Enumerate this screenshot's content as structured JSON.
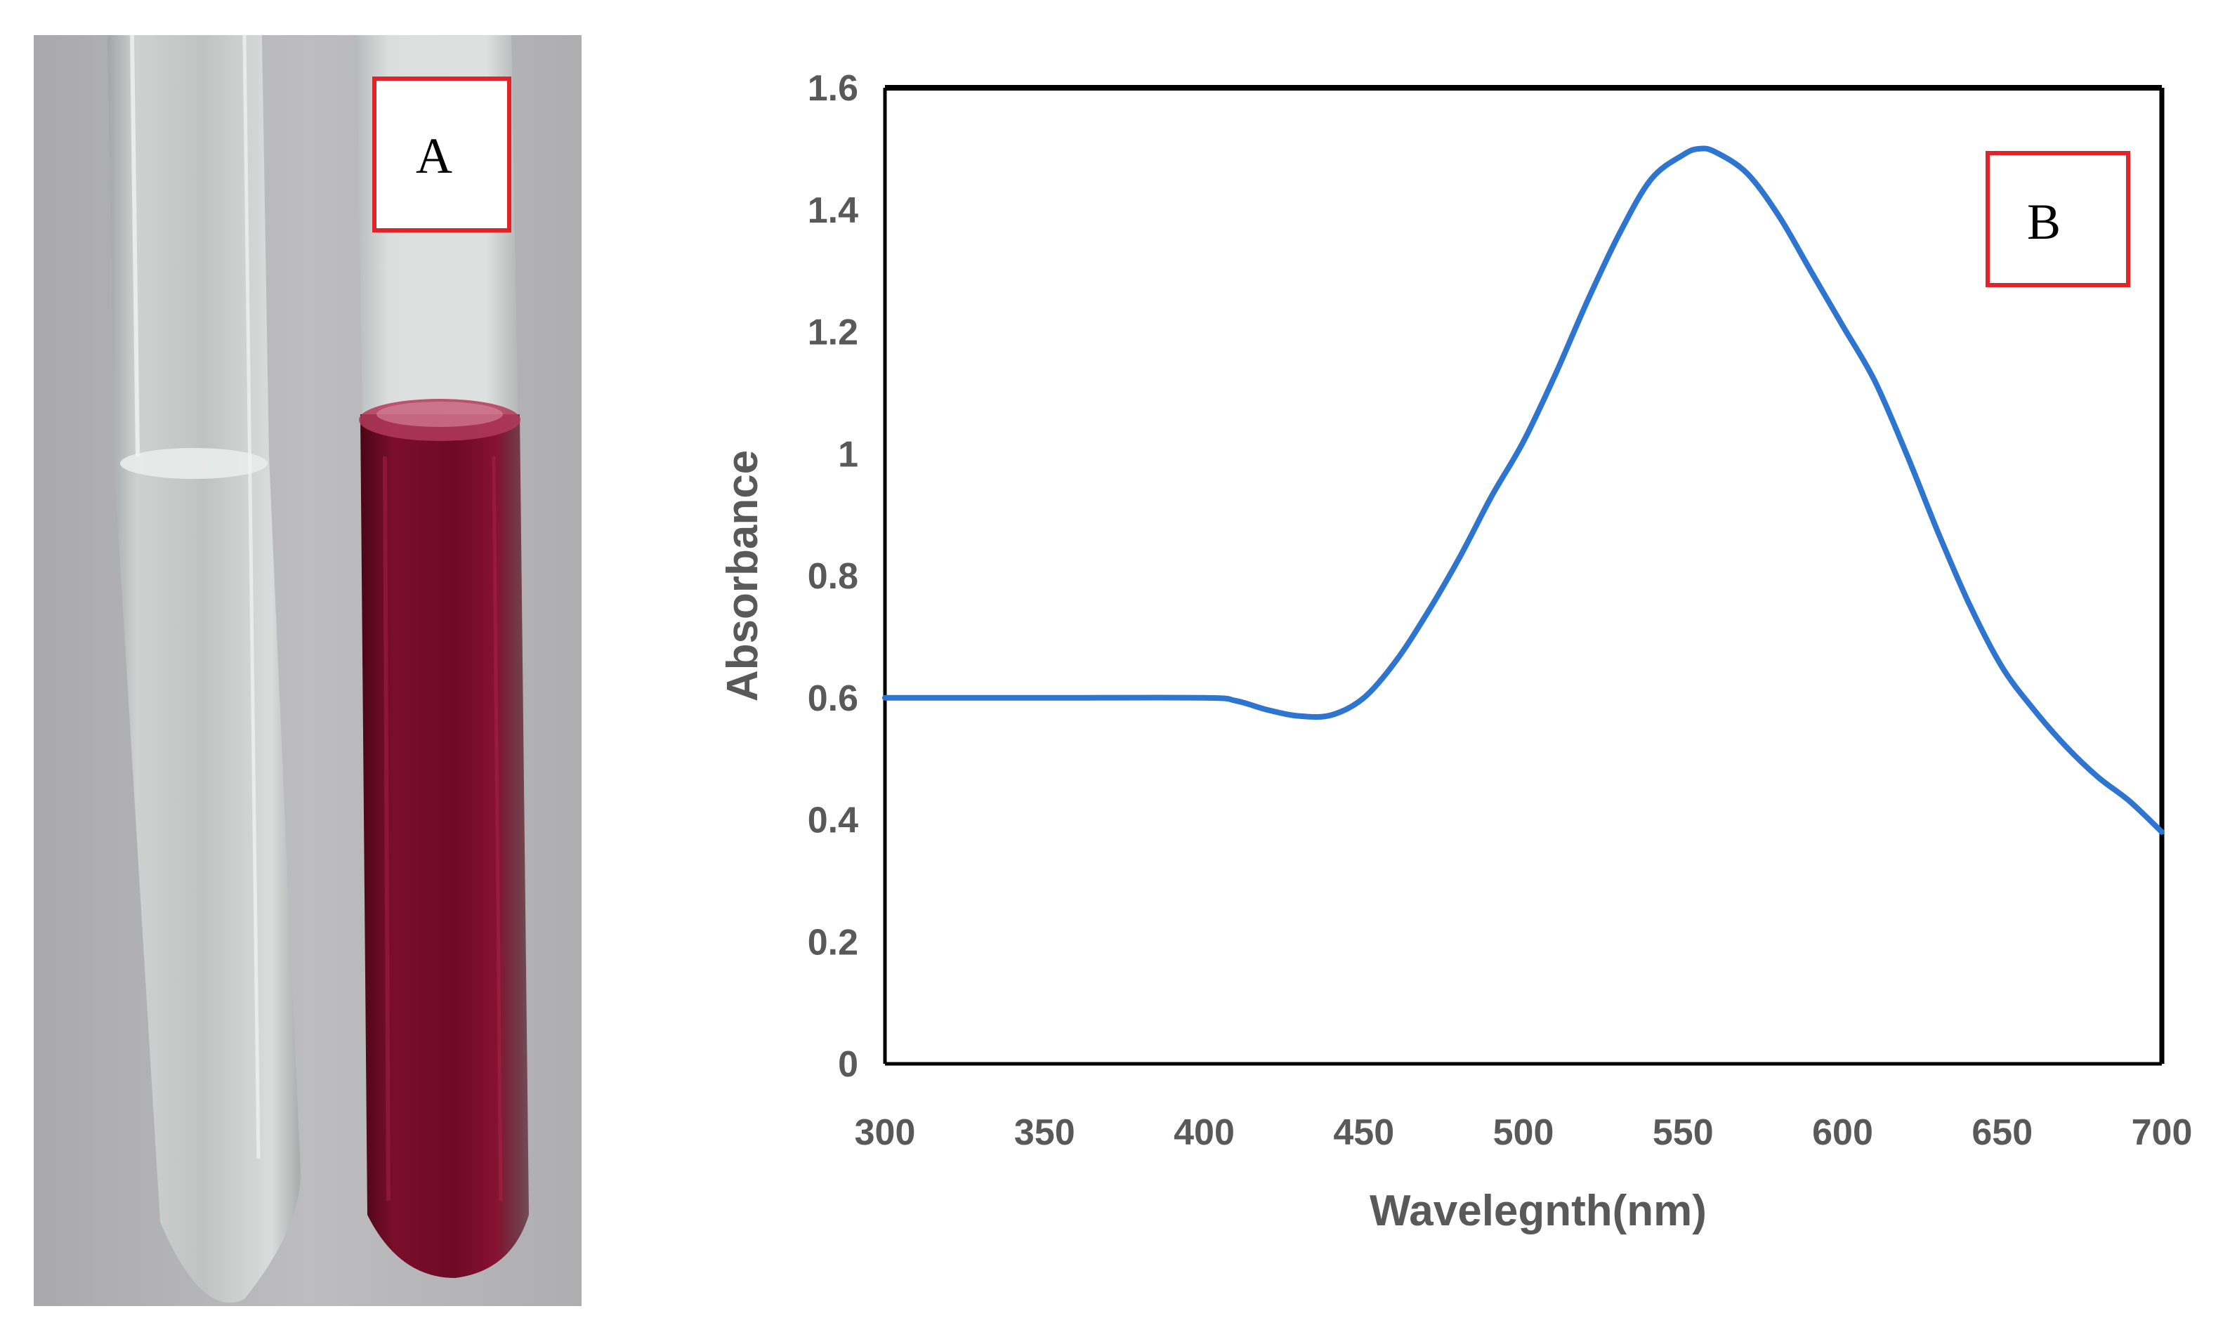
{
  "panel_a": {
    "label": "A"
  },
  "panel_b": {
    "label": "B"
  },
  "colors": {
    "line": "#2E75D0",
    "label_box": "#E0242A",
    "solution": "#6E0A24",
    "background_photo": "#B5B5B7",
    "axis_text": "#595959"
  },
  "chart_data": {
    "type": "line",
    "title": "",
    "xlabel": "Wavelegnth(nm)",
    "ylabel": "Absorbance",
    "xlim": [
      300,
      700
    ],
    "ylim": [
      0,
      1.6
    ],
    "xticks": [
      300,
      350,
      400,
      450,
      500,
      550,
      600,
      650,
      700
    ],
    "yticks": [
      0,
      0.2,
      0.4,
      0.6,
      0.8,
      1,
      1.2,
      1.4,
      1.6
    ],
    "ytick_labels": [
      "0",
      "0.2",
      "0.4",
      "0.6",
      "0.8",
      "1",
      "1.2",
      "1.4",
      "1.6"
    ],
    "grid": false,
    "series": [
      {
        "x": [
          300,
          350,
          400,
          410,
          420,
          430,
          440,
          450,
          460,
          470,
          480,
          490,
          500,
          510,
          520,
          530,
          540,
          550,
          555,
          560,
          570,
          580,
          590,
          600,
          610,
          620,
          630,
          640,
          650,
          660,
          670,
          680,
          690,
          700
        ],
        "y": [
          0.6,
          0.6,
          0.6,
          0.595,
          0.58,
          0.57,
          0.572,
          0.6,
          0.66,
          0.74,
          0.83,
          0.93,
          1.02,
          1.13,
          1.25,
          1.36,
          1.45,
          1.49,
          1.5,
          1.495,
          1.46,
          1.39,
          1.3,
          1.21,
          1.12,
          1.0,
          0.87,
          0.75,
          0.65,
          0.58,
          0.52,
          0.47,
          0.43,
          0.38
        ]
      }
    ]
  }
}
